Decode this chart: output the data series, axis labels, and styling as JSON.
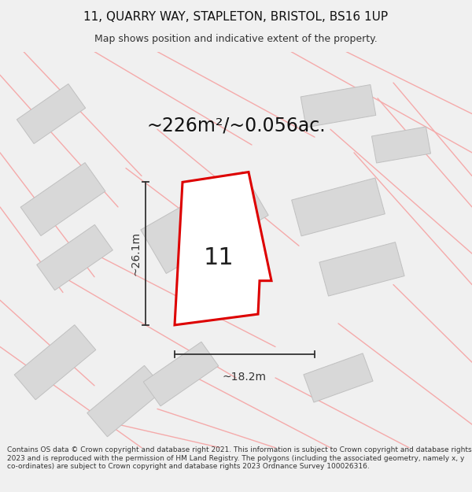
{
  "title_line1": "11, QUARRY WAY, STAPLETON, BRISTOL, BS16 1UP",
  "title_line2": "Map shows position and indicative extent of the property.",
  "area_text": "~226m²/~0.056ac.",
  "dim_vertical": "~26.1m",
  "dim_horizontal": "~18.2m",
  "property_number": "11",
  "footer_text": "Contains OS data © Crown copyright and database right 2021. This information is subject to Crown copyright and database rights 2023 and is reproduced with the permission of HM Land Registry. The polygons (including the associated geometry, namely x, y co-ordinates) are subject to Crown copyright and database rights 2023 Ordnance Survey 100026316.",
  "bg_color": "#f0f0f0",
  "map_bg": "#ffffff",
  "road_color": "#f5aaaa",
  "building_color": "#d8d8d8",
  "building_edge": "#c0c0c0",
  "property_color": "#ffffff",
  "property_edge": "#dd0000",
  "dim_color": "#333333",
  "text_color": "#111111"
}
